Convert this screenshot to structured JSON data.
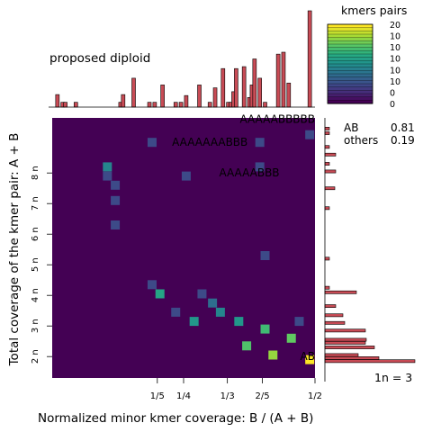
{
  "chart_data": {
    "type": "heatmap",
    "title": "",
    "xlabel": "Normalized minor kmer coverage: B / (A + B)",
    "ylabel": "Total coverage of the kmer pair: A + B",
    "xlim": [
      0,
      0.5
    ],
    "ylim": [
      1.3,
      9.8
    ],
    "x_ticks": [
      {
        "value": 0.2,
        "label": "1/5"
      },
      {
        "value": 0.25,
        "label": "1/4"
      },
      {
        "value": 0.3333,
        "label": "1/3"
      },
      {
        "value": 0.4,
        "label": "2/5"
      },
      {
        "value": 0.5,
        "label": "1/2"
      }
    ],
    "y_ticks": [
      {
        "value": 2,
        "label": "2 n"
      },
      {
        "value": 3,
        "label": "3 n"
      },
      {
        "value": 4,
        "label": "4 n"
      },
      {
        "value": 5,
        "label": "5 n"
      },
      {
        "value": 6,
        "label": "6 n"
      },
      {
        "value": 7,
        "label": "7 n"
      },
      {
        "value": 8,
        "label": "8 n"
      }
    ],
    "cells": [
      {
        "x": 0.49,
        "y": 1.9,
        "value": 20
      },
      {
        "x": 0.42,
        "y": 2.05,
        "value": 12
      },
      {
        "x": 0.37,
        "y": 2.35,
        "value": 8
      },
      {
        "x": 0.455,
        "y": 2.6,
        "value": 9
      },
      {
        "x": 0.405,
        "y": 2.9,
        "value": 7
      },
      {
        "x": 0.355,
        "y": 3.15,
        "value": 4
      },
      {
        "x": 0.27,
        "y": 3.15,
        "value": 4
      },
      {
        "x": 0.47,
        "y": 3.15,
        "value": 1
      },
      {
        "x": 0.32,
        "y": 3.45,
        "value": 3
      },
      {
        "x": 0.235,
        "y": 3.45,
        "value": 1
      },
      {
        "x": 0.305,
        "y": 3.75,
        "value": 2
      },
      {
        "x": 0.205,
        "y": 4.05,
        "value": 5
      },
      {
        "x": 0.285,
        "y": 4.05,
        "value": 1
      },
      {
        "x": 0.19,
        "y": 4.35,
        "value": 1
      },
      {
        "x": 0.405,
        "y": 5.3,
        "value": 1
      },
      {
        "x": 0.12,
        "y": 6.3,
        "value": 1
      },
      {
        "x": 0.12,
        "y": 7.1,
        "value": 1
      },
      {
        "x": 0.12,
        "y": 7.6,
        "value": 1
      },
      {
        "x": 0.255,
        "y": 7.9,
        "value": 1
      },
      {
        "x": 0.105,
        "y": 7.9,
        "value": 1
      },
      {
        "x": 0.105,
        "y": 8.2,
        "value": 3
      },
      {
        "x": 0.395,
        "y": 8.2,
        "value": 1
      },
      {
        "x": 0.19,
        "y": 9.0,
        "value": 1
      },
      {
        "x": 0.395,
        "y": 9.0,
        "value": 1
      },
      {
        "x": 0.49,
        "y": 9.25,
        "value": 1
      }
    ],
    "top_histogram": [
      {
        "x": 0.01,
        "value": 0.13
      },
      {
        "x": 0.02,
        "value": 0.05
      },
      {
        "x": 0.025,
        "value": 0.05
      },
      {
        "x": 0.045,
        "value": 0.05
      },
      {
        "x": 0.13,
        "value": 0.05
      },
      {
        "x": 0.135,
        "value": 0.13
      },
      {
        "x": 0.155,
        "value": 0.3
      },
      {
        "x": 0.185,
        "value": 0.05
      },
      {
        "x": 0.195,
        "value": 0.05
      },
      {
        "x": 0.21,
        "value": 0.23
      },
      {
        "x": 0.235,
        "value": 0.05
      },
      {
        "x": 0.245,
        "value": 0.05
      },
      {
        "x": 0.255,
        "value": 0.12
      },
      {
        "x": 0.28,
        "value": 0.23
      },
      {
        "x": 0.3,
        "value": 0.05
      },
      {
        "x": 0.31,
        "value": 0.2
      },
      {
        "x": 0.325,
        "value": 0.4
      },
      {
        "x": 0.335,
        "value": 0.05
      },
      {
        "x": 0.34,
        "value": 0.05
      },
      {
        "x": 0.345,
        "value": 0.16
      },
      {
        "x": 0.35,
        "value": 0.4
      },
      {
        "x": 0.365,
        "value": 0.42
      },
      {
        "x": 0.375,
        "value": 0.1
      },
      {
        "x": 0.38,
        "value": 0.23
      },
      {
        "x": 0.385,
        "value": 0.5
      },
      {
        "x": 0.395,
        "value": 0.3
      },
      {
        "x": 0.405,
        "value": 0.05
      },
      {
        "x": 0.43,
        "value": 0.55
      },
      {
        "x": 0.44,
        "value": 0.57
      },
      {
        "x": 0.45,
        "value": 0.25
      },
      {
        "x": 0.49,
        "value": 1.0
      }
    ],
    "right_histogram": [
      {
        "y": 1.85,
        "value": 1.0
      },
      {
        "y": 1.95,
        "value": 0.6
      },
      {
        "y": 2.05,
        "value": 0.37
      },
      {
        "y": 2.3,
        "value": 0.55
      },
      {
        "y": 2.45,
        "value": 0.45
      },
      {
        "y": 2.55,
        "value": 0.46
      },
      {
        "y": 2.85,
        "value": 0.45
      },
      {
        "y": 3.1,
        "value": 0.22
      },
      {
        "y": 3.35,
        "value": 0.2
      },
      {
        "y": 3.65,
        "value": 0.12
      },
      {
        "y": 4.1,
        "value": 0.35
      },
      {
        "y": 4.25,
        "value": 0.05
      },
      {
        "y": 5.2,
        "value": 0.05
      },
      {
        "y": 6.85,
        "value": 0.05
      },
      {
        "y": 7.5,
        "value": 0.11
      },
      {
        "y": 8.05,
        "value": 0.12
      },
      {
        "y": 8.3,
        "value": 0.05
      },
      {
        "y": 8.6,
        "value": 0.12
      },
      {
        "y": 8.85,
        "value": 0.05
      },
      {
        "y": 9.3,
        "value": 0.05
      },
      {
        "y": 9.45,
        "value": 0.05
      }
    ],
    "annotations": [
      {
        "label": "AAAAABBBBB",
        "x": 0.5,
        "y": 9.75
      },
      {
        "label": "AAAAAAABBB",
        "x": 0.3,
        "y": 9.0
      },
      {
        "label": "AAAAABBB",
        "x": 0.375,
        "y": 8.0
      },
      {
        "label": "AB",
        "x": 0.5,
        "y": 2.0
      }
    ],
    "legend": {
      "title": "kmers pairs",
      "tick_labels": [
        "20",
        "10",
        "10",
        "10",
        "10",
        "10",
        "0",
        "0"
      ],
      "placement": "top-right"
    },
    "bottom_note": "1n = 3"
  },
  "texts": {
    "proposed": "proposed diploid",
    "ab_label": "AB",
    "ab_value": "0.81",
    "others_label": "others",
    "others_value": "0.19"
  },
  "colors": {
    "background": "#440154",
    "histogram_fill": "#c84b55"
  }
}
